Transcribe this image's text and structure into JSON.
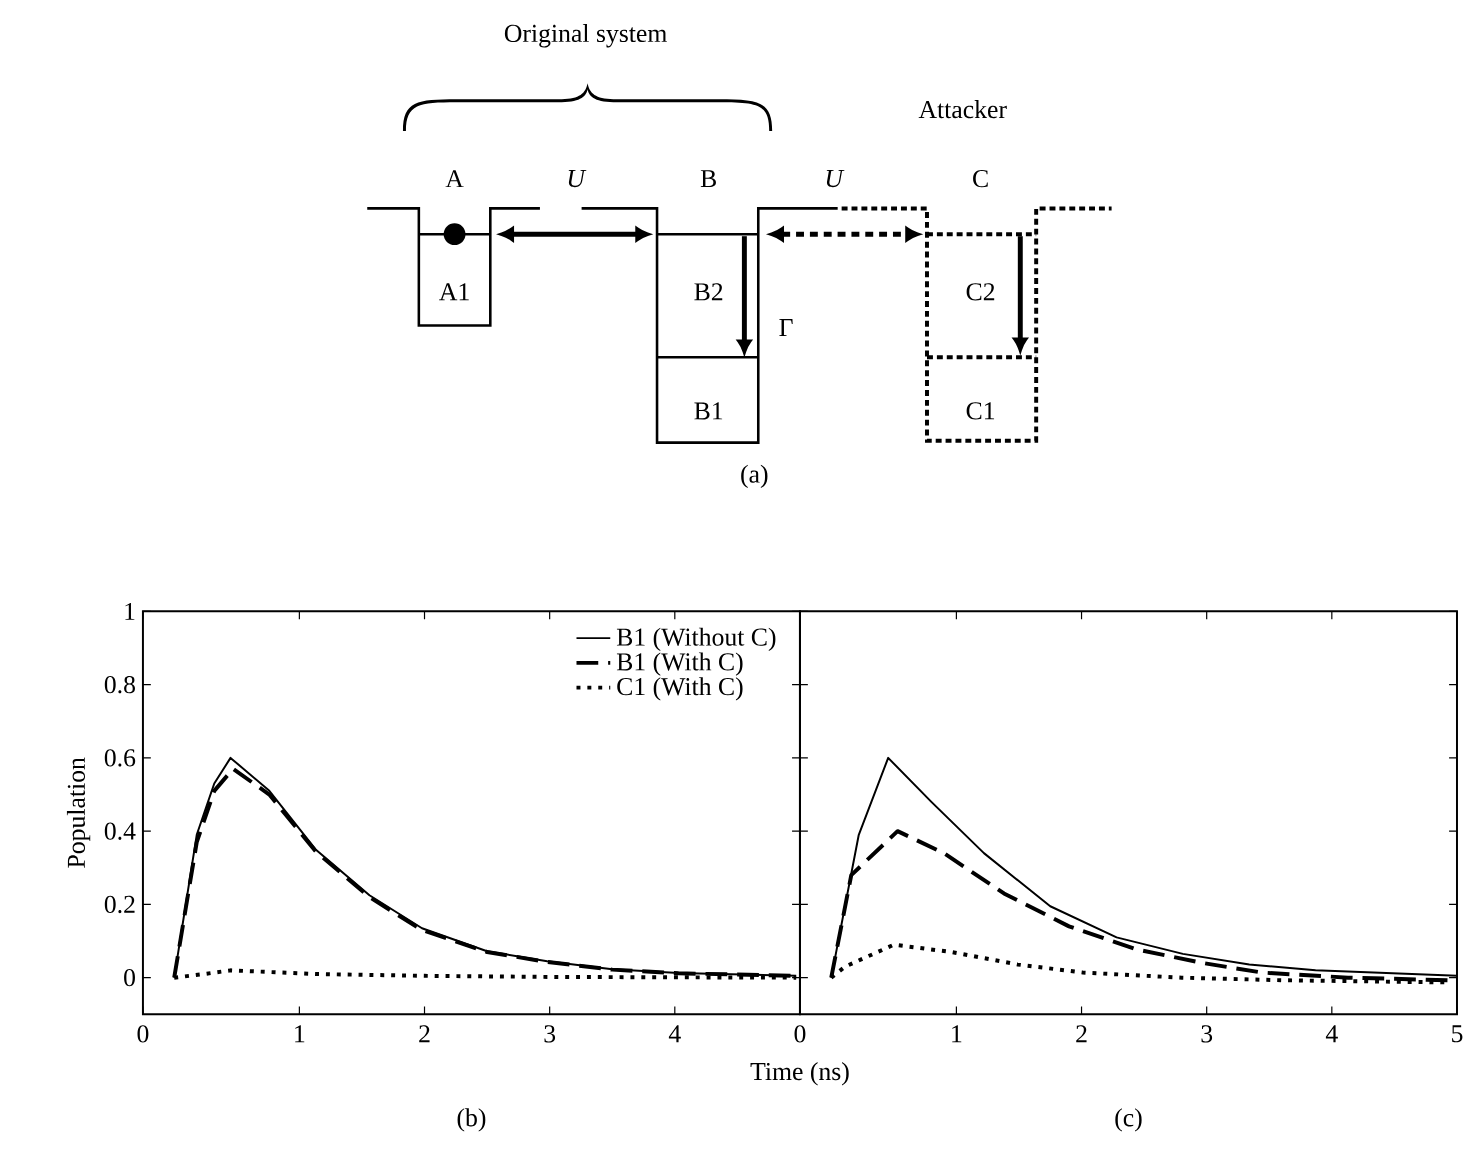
{
  "chart_data": [
    {
      "type": "other",
      "title": "(a)",
      "annotations": [
        "Original system",
        "Attacker",
        "A",
        "U",
        "B",
        "U",
        "C",
        "A1",
        "B2",
        "B1",
        "C2",
        "C1",
        "Γ"
      ]
    },
    {
      "type": "line",
      "title": "(b)",
      "xlabel": "Time (ns)",
      "ylabel": "Population",
      "xlim": [
        -0.25,
        5
      ],
      "ylim": [
        -0.1,
        1
      ],
      "xticks": [
        {
          "value": -0.25,
          "label": "0"
        },
        1,
        2,
        3,
        4
      ],
      "yticks": [
        0,
        0.2,
        0.4,
        0.6,
        0.8,
        1
      ],
      "legend": "top right",
      "series": [
        {
          "name": "B1 (Without C)",
          "color": "#000000",
          "line_style": "solid",
          "x": [
            0,
            0.18,
            0.32,
            0.45,
            0.76,
            1.13,
            1.56,
            1.98,
            2.5,
            2.98,
            3.5,
            4.03,
            4.97
          ],
          "values": [
            0,
            0.39,
            0.53,
            0.6,
            0.51,
            0.35,
            0.225,
            0.135,
            0.072,
            0.045,
            0.023,
            0.013,
            0.005
          ]
        },
        {
          "name": "B1 (With C)",
          "color": "#000000",
          "line_style": "dashed",
          "x": [
            0,
            0.18,
            0.32,
            0.47,
            0.76,
            1.13,
            1.56,
            1.98,
            2.5,
            2.98,
            3.5,
            4.03,
            4.97
          ],
          "values": [
            0,
            0.37,
            0.51,
            0.57,
            0.5,
            0.345,
            0.22,
            0.13,
            0.07,
            0.043,
            0.022,
            0.012,
            0.005
          ]
        },
        {
          "name": "C1 (With C)",
          "color": "#000000",
          "line_style": "dotted",
          "x": [
            0,
            0.24,
            0.45,
            1.13,
            2.0,
            3.0,
            4.0,
            4.97
          ],
          "values": [
            0,
            0.01,
            0.02,
            0.01,
            0.005,
            0.002,
            0.001,
            0
          ]
        }
      ]
    },
    {
      "type": "line",
      "title": "(c)",
      "xlim": [
        -0.25,
        5
      ],
      "ylim": [
        -0.1,
        1
      ],
      "xticks": [
        {
          "value": -0.25,
          "label": "0"
        },
        1,
        2,
        3,
        4,
        5
      ],
      "yticks": [
        0,
        0.2,
        0.4,
        0.6,
        0.8,
        1
      ],
      "tick_labels": "x",
      "series": [
        {
          "color": "#000000",
          "line_style": "solid",
          "x": [
            0,
            0.22,
            0.455,
            0.8,
            1.22,
            1.75,
            2.28,
            2.81,
            3.34,
            3.87,
            5
          ],
          "values": [
            0,
            0.39,
            0.6,
            0.48,
            0.34,
            0.195,
            0.11,
            0.065,
            0.036,
            0.02,
            0.005
          ]
        },
        {
          "color": "#000000",
          "line_style": "dashed",
          "x": [
            0,
            0.16,
            0.53,
            0.9,
            1.38,
            1.9,
            2.44,
            2.97,
            3.44,
            4.13,
            4.93
          ],
          "values": [
            0,
            0.28,
            0.4,
            0.34,
            0.23,
            0.14,
            0.077,
            0.04,
            0.014,
            0,
            -0.007
          ]
        },
        {
          "color": "#000000",
          "line_style": "dotted",
          "x": [
            0,
            0.11,
            0.5,
            0.96,
            1.49,
            2.01,
            2.8,
            3.6,
            4.93
          ],
          "values": [
            0,
            0.03,
            0.09,
            0.07,
            0.036,
            0.014,
            0,
            -0.007,
            -0.013
          ]
        }
      ]
    }
  ]
}
